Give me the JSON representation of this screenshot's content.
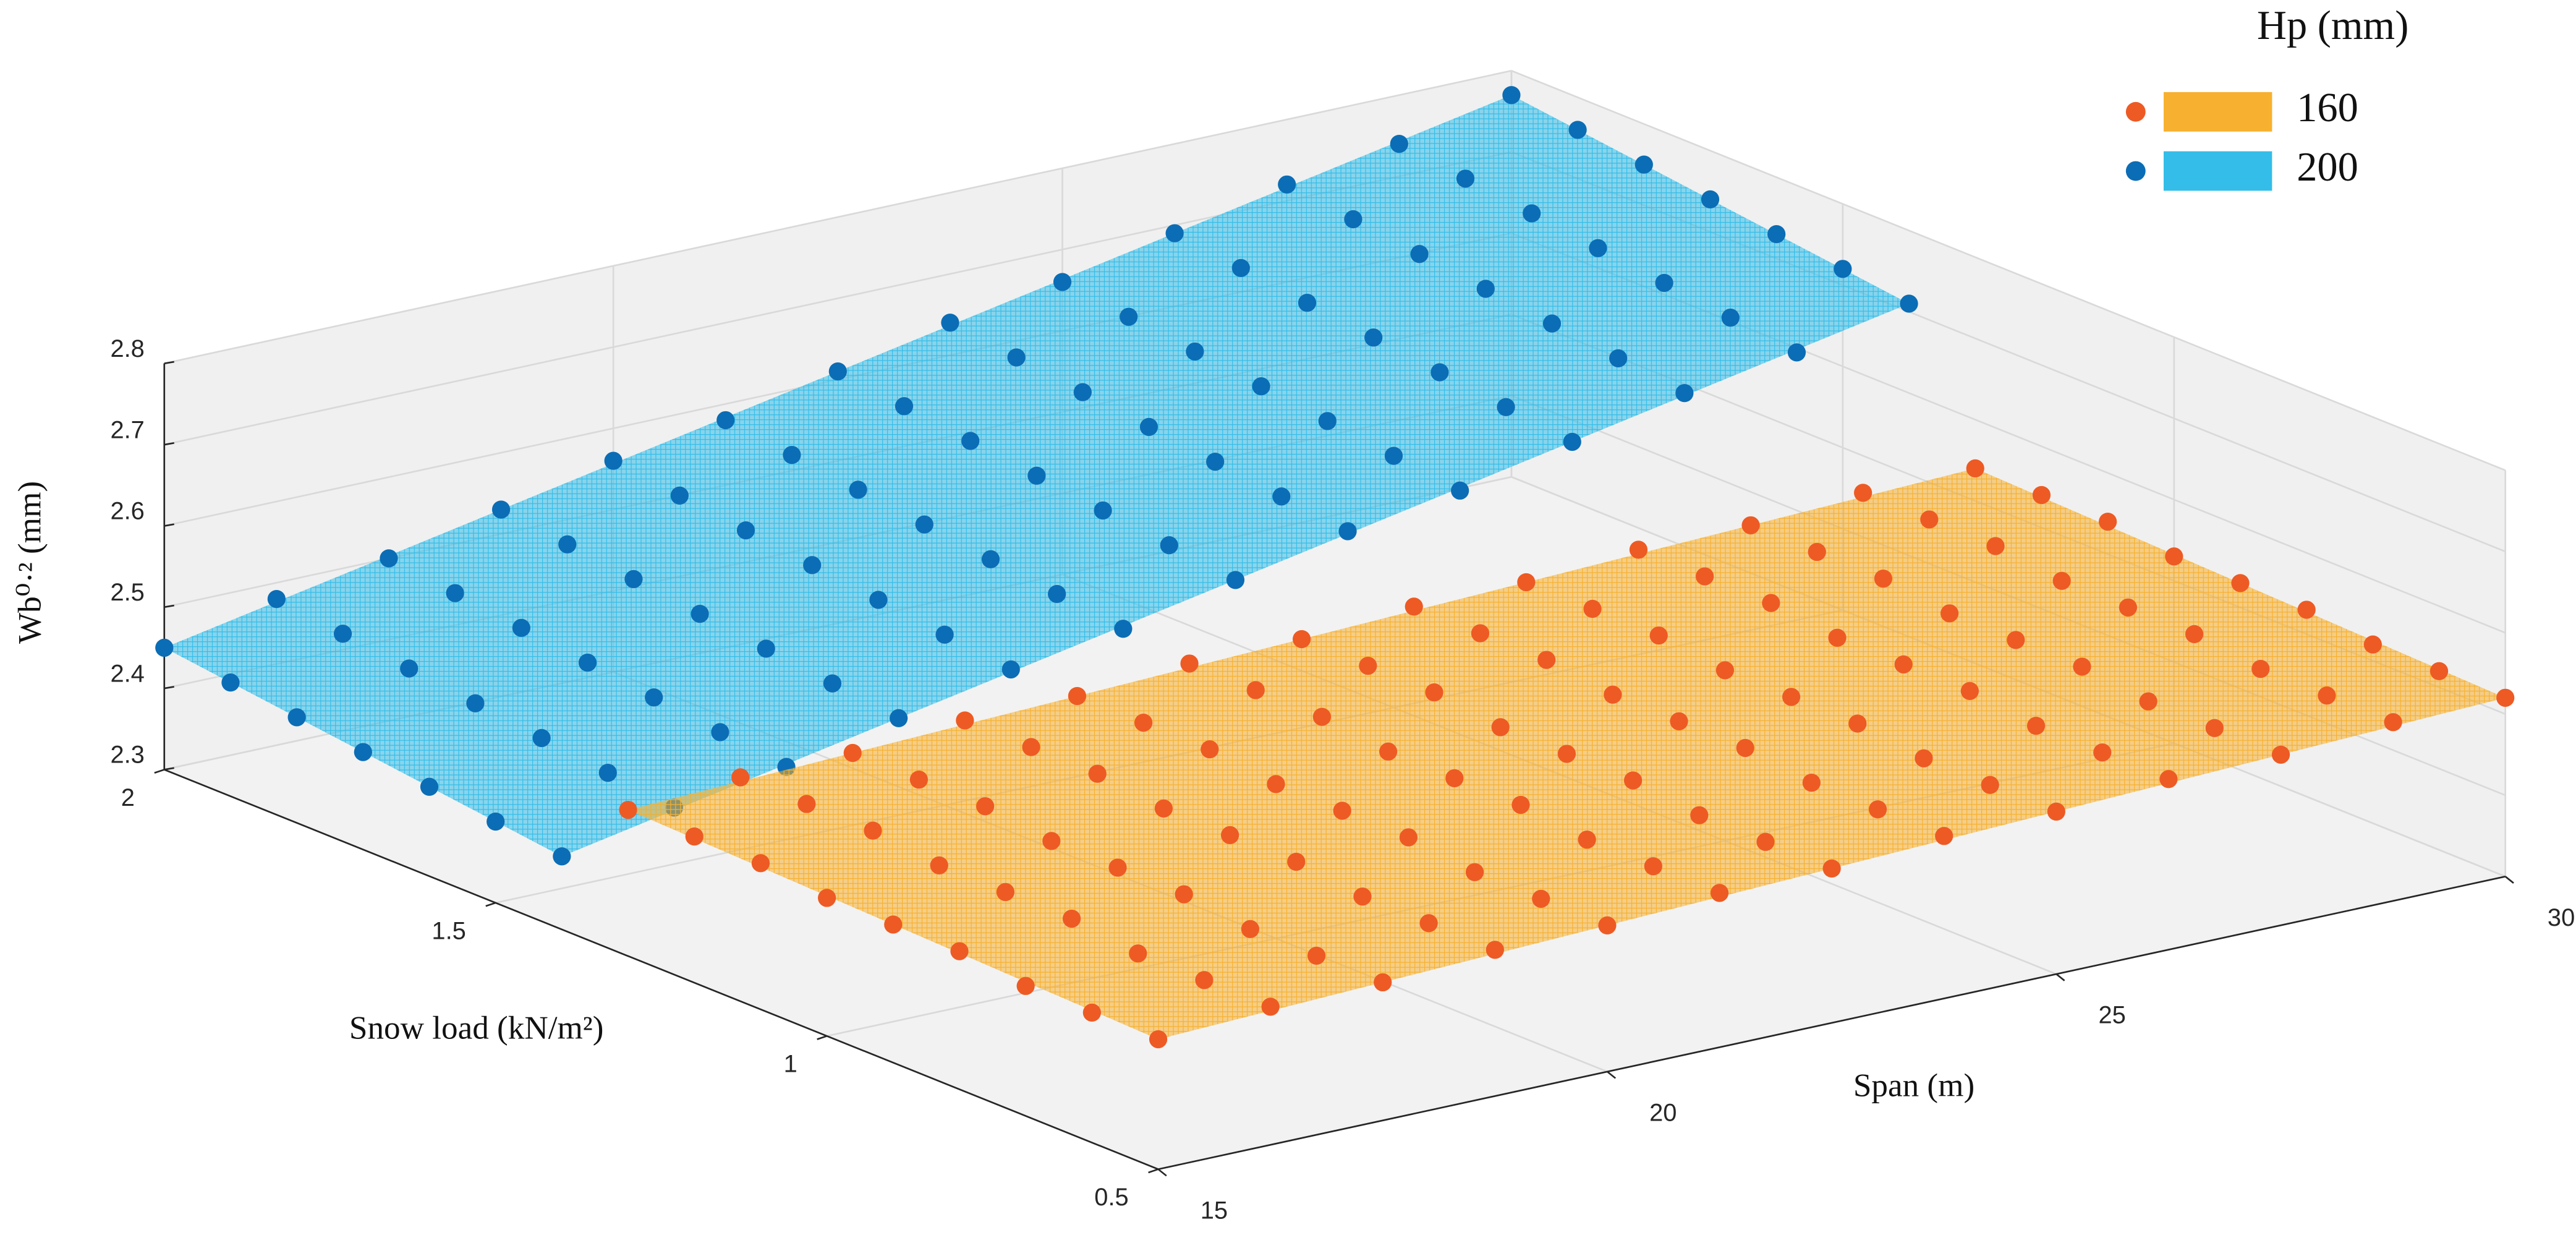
{
  "chart_data": {
    "type": "scatter3d",
    "xlabel": "Span (m)",
    "ylabel": "Snow load (kN/m²)",
    "zlabel": "Wb⁰·² (mm)",
    "legend_title": "Hp (mm)",
    "legend": "upper right",
    "grid": true,
    "xlim": [
      15,
      30
    ],
    "xticks": [
      15,
      20,
      25,
      30
    ],
    "ylim": [
      0.5,
      2
    ],
    "yticks": [
      0.5,
      1,
      1.5,
      2
    ],
    "zlim": [
      2.3,
      2.8
    ],
    "zticks": [
      2.3,
      2.4,
      2.5,
      2.6,
      2.7,
      2.8
    ],
    "series": [
      {
        "name": "200",
        "color": "#0b6db5",
        "surface_color": "#33bde8",
        "x": [
          15,
          16.25,
          17.5,
          18.75,
          20,
          21.25,
          22.5,
          23.75,
          25,
          26.25,
          27.5,
          28.75,
          30
        ],
        "y": [
          1.4,
          1.5,
          1.6,
          1.7,
          1.8,
          1.9,
          2.0
        ],
        "values": [
          [
            2.39,
            2.42,
            2.44,
            2.47,
            2.5,
            2.52,
            2.55,
            2.58,
            2.6,
            2.63,
            2.66,
            2.68,
            2.71
          ],
          [
            2.4,
            2.43,
            2.45,
            2.48,
            2.51,
            2.53,
            2.56,
            2.59,
            2.61,
            2.64,
            2.67,
            2.69,
            2.72
          ],
          [
            2.41,
            2.44,
            2.46,
            2.49,
            2.52,
            2.54,
            2.57,
            2.6,
            2.62,
            2.65,
            2.68,
            2.7,
            2.73
          ],
          [
            2.42,
            2.45,
            2.47,
            2.5,
            2.53,
            2.55,
            2.58,
            2.61,
            2.63,
            2.66,
            2.69,
            2.71,
            2.74
          ],
          [
            2.43,
            2.46,
            2.48,
            2.51,
            2.54,
            2.56,
            2.59,
            2.62,
            2.64,
            2.67,
            2.7,
            2.72,
            2.75
          ],
          [
            2.44,
            2.47,
            2.49,
            2.52,
            2.55,
            2.57,
            2.6,
            2.63,
            2.65,
            2.68,
            2.71,
            2.73,
            2.76
          ],
          [
            2.45,
            2.48,
            2.5,
            2.53,
            2.56,
            2.58,
            2.61,
            2.64,
            2.66,
            2.69,
            2.72,
            2.74,
            2.77
          ]
        ]
      },
      {
        "name": "160",
        "color": "#ee5a24",
        "surface_color": "#f7b02f",
        "x": [
          15,
          16.25,
          17.5,
          18.75,
          20,
          21.25,
          22.5,
          23.75,
          25,
          26.25,
          27.5,
          28.75,
          30
        ],
        "y": [
          0.5,
          0.6,
          0.7,
          0.8,
          0.9,
          1.0,
          1.1,
          1.2,
          1.3
        ],
        "values": [
          [
            2.46,
            2.47,
            2.47,
            2.48,
            2.48,
            2.49,
            2.49,
            2.5,
            2.5,
            2.51,
            2.51,
            2.52,
            2.52
          ],
          [
            2.46,
            2.47,
            2.47,
            2.48,
            2.48,
            2.49,
            2.49,
            2.5,
            2.5,
            2.51,
            2.51,
            2.52,
            2.52
          ],
          [
            2.46,
            2.47,
            2.47,
            2.48,
            2.48,
            2.49,
            2.49,
            2.5,
            2.5,
            2.51,
            2.51,
            2.52,
            2.52
          ],
          [
            2.47,
            2.48,
            2.48,
            2.49,
            2.49,
            2.5,
            2.5,
            2.51,
            2.51,
            2.52,
            2.52,
            2.53,
            2.53
          ],
          [
            2.47,
            2.48,
            2.48,
            2.49,
            2.49,
            2.5,
            2.5,
            2.51,
            2.51,
            2.52,
            2.52,
            2.53,
            2.53
          ],
          [
            2.47,
            2.48,
            2.48,
            2.49,
            2.49,
            2.5,
            2.5,
            2.51,
            2.51,
            2.52,
            2.52,
            2.53,
            2.53
          ],
          [
            2.48,
            2.49,
            2.49,
            2.5,
            2.5,
            2.51,
            2.51,
            2.52,
            2.52,
            2.53,
            2.53,
            2.54,
            2.54
          ],
          [
            2.48,
            2.49,
            2.49,
            2.5,
            2.5,
            2.51,
            2.51,
            2.52,
            2.52,
            2.53,
            2.53,
            2.54,
            2.54
          ],
          [
            2.48,
            2.49,
            2.49,
            2.5,
            2.5,
            2.51,
            2.51,
            2.52,
            2.52,
            2.53,
            2.53,
            2.54,
            2.54
          ]
        ]
      }
    ]
  }
}
